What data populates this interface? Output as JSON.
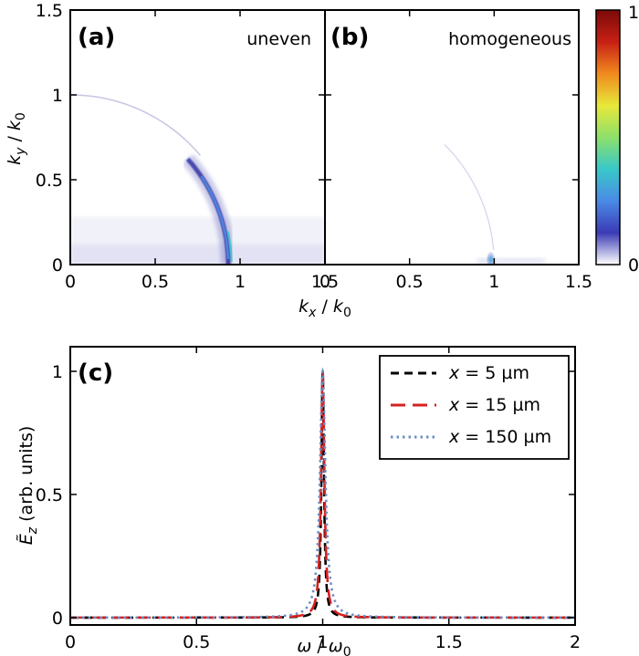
{
  "chart_data": [
    {
      "type": "heatmap",
      "panel_label": "(a)",
      "annotation": "uneven",
      "xlabel": "k_x / k_0",
      "ylabel": "k_y / k_0",
      "xlim": [
        0,
        1.5
      ],
      "ylim": [
        0,
        1.5
      ],
      "x_ticks": [
        "0",
        "0.5",
        "1",
        "1.5"
      ],
      "y_ticks": [
        "0",
        "0.5",
        "1",
        "1.5"
      ],
      "colormap": "white-blue-cyan-green-yellow-red",
      "features": {
        "ring_radius": 1.0,
        "ring_strong_from_angle_deg": 0,
        "ring_strong_to_angle_deg": 40,
        "ring_faint_to_angle_deg": 90,
        "low_ky_band": true
      }
    },
    {
      "type": "heatmap",
      "panel_label": "(b)",
      "annotation": "homogeneous",
      "xlabel": "k_x / k_0",
      "xlim": [
        0,
        1.5
      ],
      "ylim": [
        0,
        1.5
      ],
      "x_ticks": [
        "0",
        "0.5",
        "1",
        "1.5"
      ],
      "features": {
        "ring_radius": 1.0,
        "ring_faint_to_angle_deg": 45,
        "spot_at": [
          0.98,
          0.03
        ]
      }
    },
    {
      "type": "line",
      "panel_label": "(c)",
      "xlabel": "ω / ω_0",
      "ylabel": "Ẽ_z (arb. units)",
      "xlim": [
        0,
        2
      ],
      "ylim": [
        -0.03,
        1.1
      ],
      "x_ticks": [
        "0",
        "0.5",
        "1",
        "1.5",
        "2"
      ],
      "y_ticks": [
        "0",
        "0.5",
        "1"
      ],
      "legend_position": "top-right",
      "series": [
        {
          "name": "x = 5 µm",
          "color": "#000000",
          "style": "dashed",
          "peak_x": 1.0,
          "peak_y": 1.0,
          "half_width": 0.006
        },
        {
          "name": "x = 15 µm",
          "color": "#d62020",
          "style": "long-dashed",
          "peak_x": 1.0,
          "peak_y": 1.0,
          "half_width": 0.008
        },
        {
          "name": "x = 150 µm",
          "color": "#6a8fc4",
          "style": "dotted",
          "peak_x": 1.0,
          "peak_y": 1.0,
          "half_width": 0.013
        }
      ]
    }
  ],
  "colorbar": {
    "tick_max": "1",
    "tick_min": "0",
    "colors": [
      "#ffffff",
      "#3b3bb5",
      "#4a8ae6",
      "#38c8c8",
      "#8ee06a",
      "#e8e83a",
      "#f08a1e",
      "#c82014",
      "#7a0a0a"
    ]
  }
}
